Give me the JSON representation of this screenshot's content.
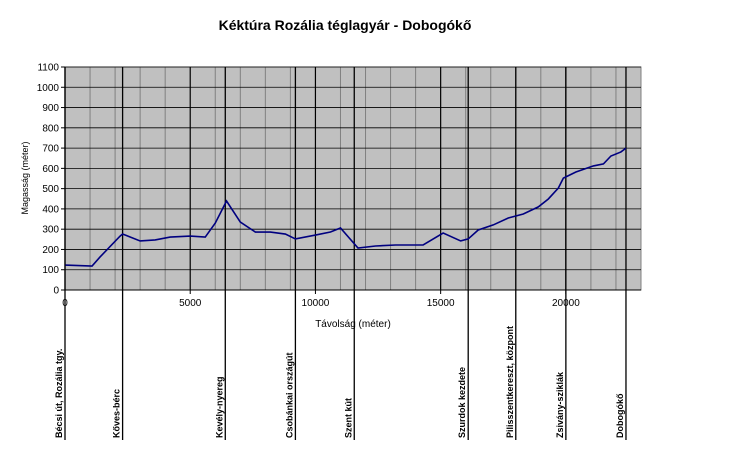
{
  "chart_data": {
    "type": "line",
    "title": "Kéktúra Rozália téglagyár - Dobogókő",
    "x_label": "Távolság (méter)",
    "y_label": "Magasság (méter)",
    "xlim": [
      0,
      23000
    ],
    "ylim": [
      0,
      1100
    ],
    "xticks": [
      0,
      5000,
      10000,
      15000,
      20000
    ],
    "yticks": [
      0,
      100,
      200,
      300,
      400,
      500,
      600,
      700,
      800,
      900,
      1000,
      1100
    ],
    "x_gridlines": [
      1000,
      2000,
      3000,
      4000,
      6000,
      7000,
      8000,
      9000,
      11000,
      12000,
      13000,
      14000,
      16000,
      17000,
      18000,
      19000,
      21000,
      22000
    ],
    "grid": true,
    "series": [
      {
        "name": "Magasság",
        "color": "#000080",
        "x": [
          0,
          1080,
          1400,
          2200,
          2300,
          3000,
          3600,
          4200,
          5000,
          5600,
          6000,
          6450,
          7000,
          7600,
          8200,
          8800,
          9200,
          10000,
          10600,
          11000,
          11700,
          12400,
          13200,
          14300,
          15100,
          15800,
          16100,
          16500,
          17100,
          17700,
          18300,
          18900,
          19300,
          19700,
          19900,
          20400,
          21100,
          21500,
          21800,
          22200,
          22400
        ],
        "values": [
          123,
          118,
          163,
          266,
          276,
          242,
          247,
          261,
          266,
          261,
          330,
          439,
          335,
          286,
          286,
          276,
          252,
          271,
          286,
          306,
          207,
          217,
          222,
          222,
          281,
          242,
          252,
          296,
          321,
          355,
          375,
          410,
          449,
          503,
          552,
          582,
          612,
          622,
          661,
          681,
          700
        ]
      }
    ],
    "waypoints": [
      {
        "label": "Bécsi út, Rozália tgy.",
        "x": 0
      },
      {
        "label": "Kőves-bérc",
        "x": 2300
      },
      {
        "label": "Kevély-nyereg",
        "x": 6400
      },
      {
        "label": "Csobánkai országút",
        "x": 9200
      },
      {
        "label": "Szent kút",
        "x": 11550
      },
      {
        "label": "Szurdok kezdete",
        "x": 16100
      },
      {
        "label": "Pilisszentkereszt, központ",
        "x": 18000
      },
      {
        "label": "Zsivány-sziklák",
        "x": 20000
      },
      {
        "label": "Dobogókő",
        "x": 22400
      }
    ]
  }
}
